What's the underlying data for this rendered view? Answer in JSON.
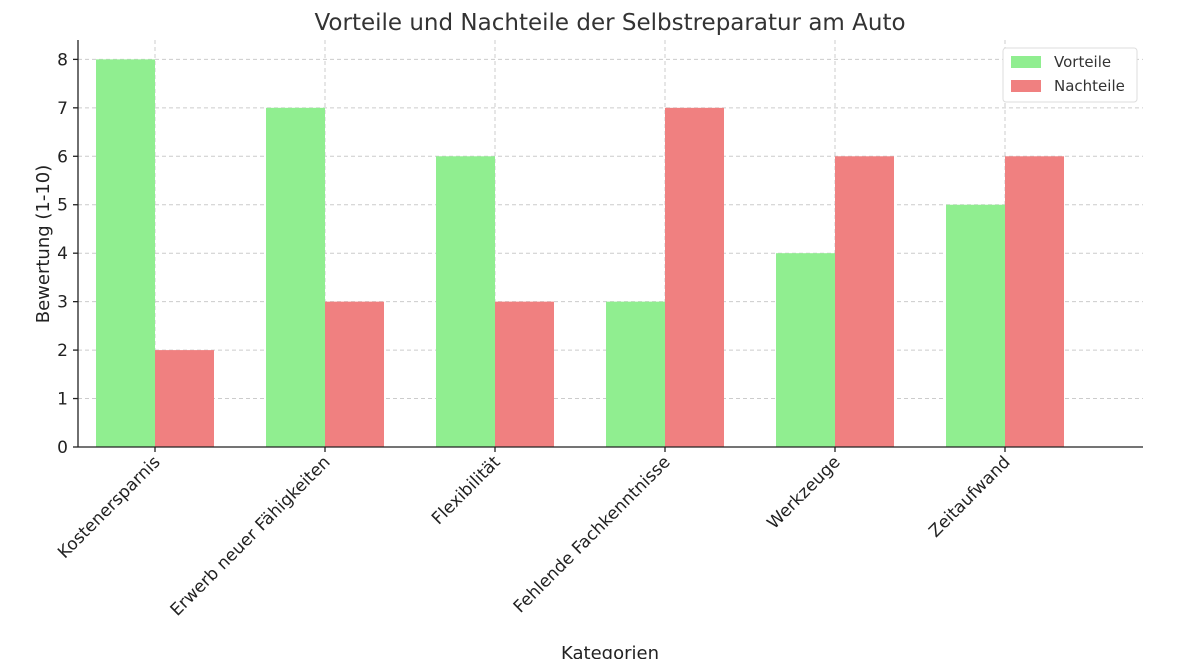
{
  "chart_data": {
    "type": "bar",
    "title": "Vorteile und Nachteile der Selbstreparatur am Auto",
    "xlabel": "Kategorien",
    "ylabel": "Bewertung (1-10)",
    "ylim": [
      0,
      8.4
    ],
    "yticks": [
      0,
      1,
      2,
      3,
      4,
      5,
      6,
      7,
      8
    ],
    "grid": true,
    "legend_position": "top-right",
    "categories": [
      "Kostenersparnis",
      "Erwerb neuer Fähigkeiten",
      "Flexibilität",
      "Fehlende Fachkenntnisse",
      "Werkzeuge",
      "Zeitaufwand"
    ],
    "series": [
      {
        "name": "Vorteile",
        "color": "#90EE90",
        "values": [
          8,
          7,
          6,
          3,
          4,
          5
        ]
      },
      {
        "name": "Nachteile",
        "color": "#F08080",
        "values": [
          2,
          3,
          3,
          7,
          6,
          6
        ]
      }
    ]
  }
}
